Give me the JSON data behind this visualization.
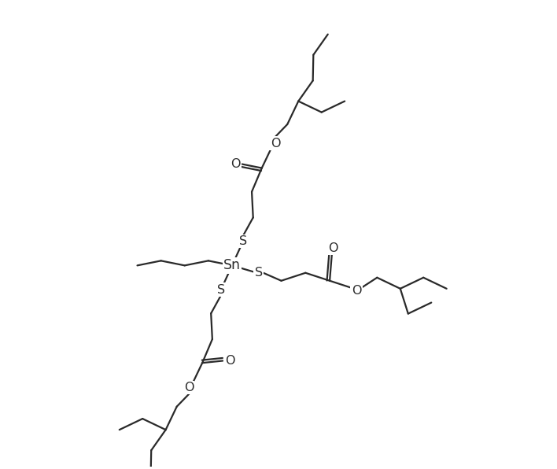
{
  "background_color": "#ffffff",
  "line_color": "#2a2a2a",
  "line_width": 1.6,
  "font_size": 11.5,
  "figsize": [
    7.08,
    5.96
  ],
  "dpi": 100,
  "xlim": [
    -5.5,
    8.5
  ],
  "ylim": [
    -6.5,
    8.5
  ]
}
